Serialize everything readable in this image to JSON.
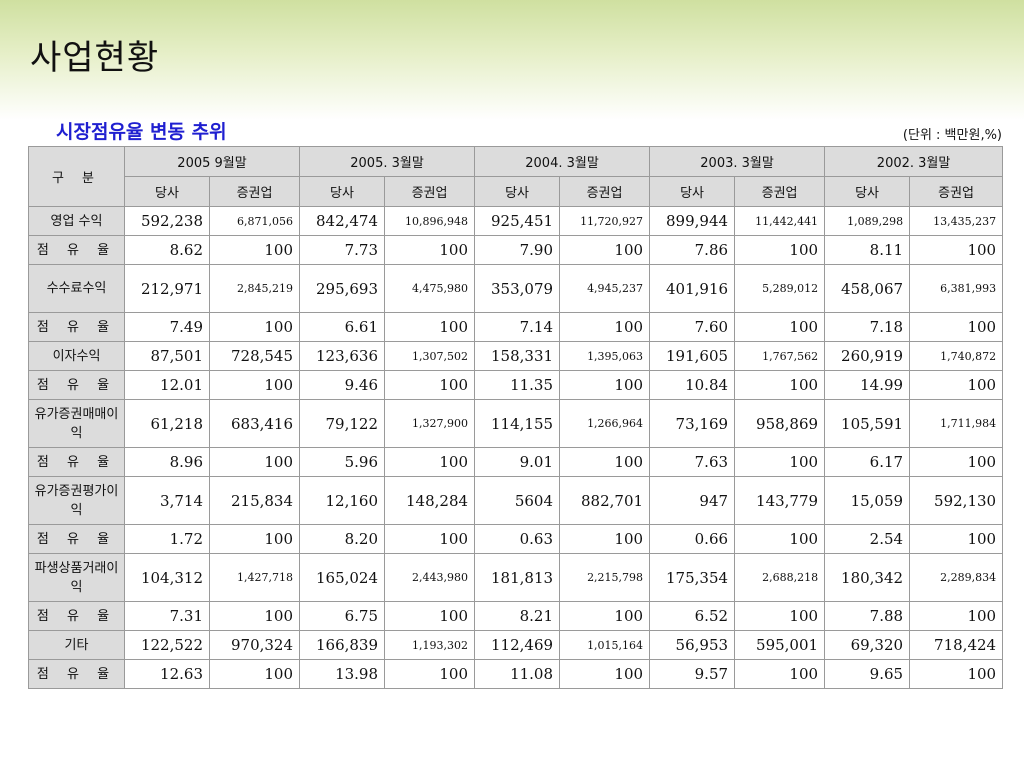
{
  "page_title": "사업현황",
  "section_title": "시장점유율 변동 추위",
  "unit_note": "(단위 : 백만원,%)",
  "table": {
    "corner_label": "구 분",
    "periods": [
      "2005  9월말",
      "2005. 3월말",
      "2004. 3월말",
      "2003. 3월말",
      "2002. 3월말"
    ],
    "sub_headers": [
      "당사",
      "증권업"
    ],
    "rows": [
      {
        "label": "영업 수익",
        "tall": false,
        "cells": [
          "592,238",
          "6,871,056",
          "842,474",
          "10,896,948",
          "925,451",
          "11,720,927",
          "899,944",
          "11,442,441",
          "1,089,298",
          "13,435,237"
        ],
        "small": [
          1,
          3,
          5,
          7,
          8,
          9
        ]
      },
      {
        "label": "점 유 율",
        "tall": false,
        "cells": [
          "8.62",
          "100",
          "7.73",
          "100",
          "7.90",
          "100",
          "7.86",
          "100",
          "8.11",
          "100"
        ],
        "small": []
      },
      {
        "label": "수수료수익",
        "tall": true,
        "cells": [
          "212,971",
          "2,845,219",
          "295,693",
          "4,475,980",
          "353,079",
          "4,945,237",
          "401,916",
          "5,289,012",
          "458,067",
          "6,381,993"
        ],
        "small": [
          1,
          3,
          5,
          7,
          9
        ]
      },
      {
        "label": "점 유 율",
        "tall": false,
        "cells": [
          "7.49",
          "100",
          "6.61",
          "100",
          "7.14",
          "100",
          "7.60",
          "100",
          "7.18",
          "100"
        ],
        "small": []
      },
      {
        "label": "이자수익",
        "tall": false,
        "cells": [
          "87,501",
          "728,545",
          "123,636",
          "1,307,502",
          "158,331",
          "1,395,063",
          "191,605",
          "1,767,562",
          "260,919",
          "1,740,872"
        ],
        "small": [
          3,
          5,
          7,
          9
        ]
      },
      {
        "label": "점 유 율",
        "tall": false,
        "cells": [
          "12.01",
          "100",
          "9.46",
          "100",
          "11.35",
          "100",
          "10.84",
          "100",
          "14.99",
          "100"
        ],
        "small": []
      },
      {
        "label": "유가증권매매이익",
        "tall": true,
        "cells": [
          "61,218",
          "683,416",
          "79,122",
          "1,327,900",
          "114,155",
          "1,266,964",
          "73,169",
          "958,869",
          "105,591",
          "1,711,984"
        ],
        "small": [
          3,
          5,
          9
        ]
      },
      {
        "label": "점 유 율",
        "tall": false,
        "cells": [
          "8.96",
          "100",
          "5.96",
          "100",
          "9.01",
          "100",
          "7.63",
          "100",
          "6.17",
          "100"
        ],
        "small": []
      },
      {
        "label": "유가증권평가이익",
        "tall": true,
        "cells": [
          "3,714",
          "215,834",
          "12,160",
          "148,284",
          "5604",
          "882,701",
          "947",
          "143,779",
          "15,059",
          "592,130"
        ],
        "small": []
      },
      {
        "label": "점 유 율",
        "tall": false,
        "cells": [
          "1.72",
          "100",
          "8.20",
          "100",
          "0.63",
          "100",
          "0.66",
          "100",
          "2.54",
          "100"
        ],
        "small": []
      },
      {
        "label": "파생상품거래이익",
        "tall": true,
        "cells": [
          "104,312",
          "1,427,718",
          "165,024",
          "2,443,980",
          "181,813",
          "2,215,798",
          "175,354",
          "2,688,218",
          "180,342",
          "2,289,834"
        ],
        "small": [
          1,
          3,
          5,
          7,
          9
        ]
      },
      {
        "label": "점 유 율",
        "tall": false,
        "cells": [
          "7.31",
          "100",
          "6.75",
          "100",
          "8.21",
          "100",
          "6.52",
          "100",
          "7.88",
          "100"
        ],
        "small": []
      },
      {
        "label": "기타",
        "tall": false,
        "cells": [
          "122,522",
          "970,324",
          "166,839",
          "1,193,302",
          "112,469",
          "1,015,164",
          "56,953",
          "595,001",
          "69,320",
          "718,424"
        ],
        "small": [
          3,
          5
        ]
      },
      {
        "label": "점 유 율",
        "tall": false,
        "cells": [
          "12.63",
          "100",
          "13.98",
          "100",
          "11.08",
          "100",
          "9.57",
          "100",
          "9.65",
          "100"
        ],
        "small": []
      }
    ]
  }
}
